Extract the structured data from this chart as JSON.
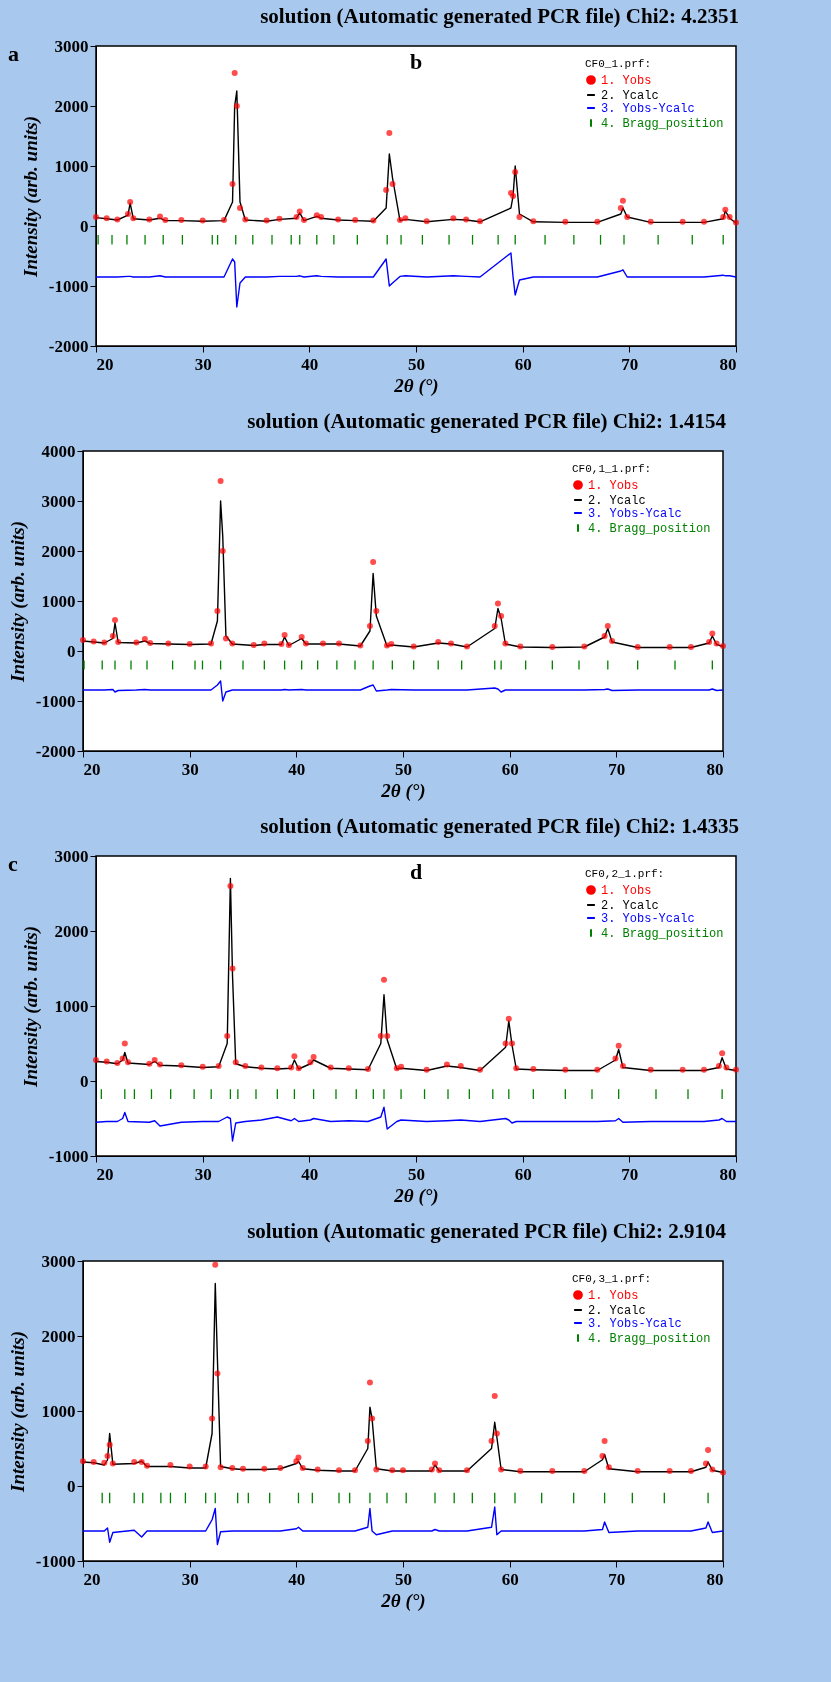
{
  "chart_data": [
    {
      "type": "line",
      "title": "solution (Automatic generated PCR file) Chi2: 4.2351",
      "xlabel": "2θ (°)",
      "ylabel": "Intensity (arb. units)",
      "legend_title": "CF0_1.prf:",
      "legend": "top right",
      "annotations": [
        "a",
        "b"
      ],
      "xlim": [
        20,
        80
      ],
      "xticks": [
        20,
        30,
        40,
        50,
        60,
        70,
        80
      ],
      "ylim": [
        -2000,
        3000
      ],
      "yticks": [
        -2000,
        -1000,
        0,
        1000,
        2000,
        3000
      ],
      "x": [
        20,
        21,
        22,
        23.0,
        23.2,
        23.5,
        25,
        26,
        26.5,
        28,
        30,
        32,
        32.8,
        33.0,
        33.2,
        33.5,
        34,
        36,
        37.2,
        38.8,
        39.1,
        39.5,
        40.7,
        41.1,
        42.7,
        44.3,
        46,
        47.2,
        47.5,
        47.8,
        48.5,
        49.0,
        51,
        53.5,
        54.7,
        56,
        58.9,
        59.1,
        59.3,
        59.7,
        61,
        64,
        67,
        69.2,
        69.4,
        69.8,
        72,
        75,
        77,
        78.8,
        79.0,
        79.4,
        80
      ],
      "series": [
        {
          "name": "1. Yobs",
          "color": "#ff0000",
          "type": "scatter",
          "marker": "circle",
          "values": [
            150,
            130,
            110,
            200,
            400,
            130,
            110,
            160,
            100,
            100,
            90,
            100,
            700,
            2550,
            2000,
            300,
            110,
            90,
            120,
            150,
            240,
            100,
            180,
            150,
            110,
            100,
            90,
            600,
            1550,
            700,
            100,
            130,
            80,
            130,
            110,
            80,
            550,
            500,
            900,
            150,
            80,
            70,
            70,
            300,
            420,
            150,
            70,
            70,
            70,
            150,
            270,
            150,
            60
          ]
        },
        {
          "name": "2. Ycalc",
          "color": "#000000",
          "values": [
            140,
            120,
            100,
            180,
            380,
            120,
            100,
            130,
            90,
            90,
            80,
            90,
            400,
            2000,
            2250,
            400,
            100,
            80,
            110,
            130,
            220,
            90,
            160,
            130,
            100,
            90,
            80,
            300,
            1200,
            800,
            90,
            110,
            70,
            110,
            100,
            70,
            300,
            500,
            1000,
            200,
            70,
            60,
            60,
            200,
            300,
            150,
            60,
            60,
            60,
            120,
            250,
            130,
            50
          ]
        },
        {
          "name": "3. Yobs-Ycalc",
          "color": "#0000ff",
          "values": [
            -850,
            -850,
            -850,
            -840,
            -840,
            -850,
            -850,
            -830,
            -850,
            -850,
            -850,
            -850,
            -550,
            -600,
            -1350,
            -950,
            -850,
            -850,
            -840,
            -840,
            -830,
            -850,
            -830,
            -840,
            -850,
            -850,
            -850,
            -550,
            -1000,
            -950,
            -840,
            -830,
            -850,
            -830,
            -840,
            -850,
            -450,
            -850,
            -1150,
            -900,
            -850,
            -850,
            -850,
            -750,
            -730,
            -850,
            -850,
            -850,
            -850,
            -820,
            -830,
            -830,
            -850
          ]
        },
        {
          "name": "4. Bragg_position",
          "color": "#008000",
          "type": "bar",
          "x": [
            20.2,
            21.5,
            22.9,
            24.6,
            26.3,
            28.1,
            30.9,
            31.4,
            33.1,
            34.7,
            36.5,
            38.3,
            39.1,
            40.7,
            42.3,
            44.5,
            47.3,
            48.6,
            50.6,
            53.1,
            55.3,
            57.7,
            59.3,
            62.1,
            64.8,
            67.3,
            69.5,
            72.7,
            75.9,
            78.8
          ],
          "base": [
            -310,
            -310,
            -310,
            -310,
            -310,
            -310,
            -310,
            -310,
            -310,
            -310,
            -310,
            -310,
            -310,
            -310,
            -310,
            -310,
            -310,
            -310,
            -310,
            -310,
            -310,
            -310,
            -310,
            -310,
            -310,
            -310,
            -310,
            -310,
            -310,
            -310
          ],
          "values": [
            160,
            160,
            160,
            160,
            160,
            160,
            160,
            160,
            160,
            160,
            160,
            160,
            160,
            160,
            160,
            160,
            160,
            160,
            160,
            160,
            160,
            160,
            160,
            160,
            160,
            160,
            160,
            160,
            160,
            160
          ]
        }
      ]
    },
    {
      "type": "line",
      "title": "solution (Automatic generated PCR file) Chi2: 1.4154",
      "xlabel": "2θ (°)",
      "ylabel": "Intensity (arb. units)",
      "legend_title": "CF0,1_1.prf:",
      "legend": "top right",
      "xlim": [
        20,
        80
      ],
      "xticks": [
        20,
        30,
        40,
        50,
        60,
        70,
        80
      ],
      "ylim": [
        -2000,
        4000
      ],
      "yticks": [
        -2000,
        -1000,
        0,
        1000,
        2000,
        3000,
        4000
      ],
      "x": [
        20,
        21,
        22,
        22.8,
        23.0,
        23.3,
        25,
        25.8,
        26.3,
        28,
        30,
        32,
        32.6,
        32.9,
        33.1,
        33.4,
        34,
        36,
        37,
        38.6,
        38.9,
        39.3,
        40.5,
        40.9,
        42.5,
        44,
        46,
        46.9,
        47.2,
        47.5,
        48.5,
        48.9,
        51,
        53.3,
        54.5,
        56,
        58.6,
        58.9,
        59.2,
        59.6,
        61,
        64,
        67,
        68.9,
        69.2,
        69.6,
        72,
        75,
        77,
        78.7,
        79.0,
        79.4,
        80
      ],
      "series": [
        {
          "name": "1. Yobs",
          "color": "#ff0000",
          "type": "scatter",
          "marker": "circle",
          "values": [
            220,
            190,
            170,
            300,
            620,
            180,
            170,
            240,
            160,
            150,
            140,
            150,
            800,
            3400,
            2000,
            250,
            150,
            120,
            150,
            140,
            320,
            120,
            280,
            150,
            150,
            150,
            110,
            500,
            1780,
            800,
            110,
            140,
            90,
            180,
            150,
            90,
            500,
            950,
            700,
            150,
            90,
            80,
            90,
            300,
            500,
            200,
            80,
            80,
            80,
            180,
            350,
            150,
            100
          ]
        },
        {
          "name": "2. Ycalc",
          "color": "#000000",
          "values": [
            200,
            180,
            160,
            250,
            560,
            170,
            160,
            200,
            150,
            140,
            130,
            140,
            600,
            3000,
            2300,
            300,
            140,
            110,
            130,
            130,
            280,
            110,
            250,
            140,
            140,
            140,
            100,
            400,
            1550,
            700,
            100,
            120,
            80,
            160,
            140,
            80,
            450,
            850,
            650,
            140,
            80,
            70,
            80,
            280,
            450,
            180,
            70,
            70,
            70,
            160,
            300,
            130,
            90
          ]
        },
        {
          "name": "3. Yobs-Ycalc",
          "color": "#0000ff",
          "values": [
            -780,
            -780,
            -780,
            -770,
            -820,
            -790,
            -780,
            -770,
            -780,
            -780,
            -780,
            -780,
            -680,
            -600,
            -1000,
            -820,
            -780,
            -780,
            -780,
            -780,
            -770,
            -780,
            -770,
            -780,
            -780,
            -780,
            -780,
            -700,
            -680,
            -800,
            -780,
            -770,
            -780,
            -780,
            -780,
            -780,
            -740,
            -760,
            -820,
            -780,
            -780,
            -780,
            -780,
            -770,
            -760,
            -790,
            -780,
            -780,
            -780,
            -780,
            -760,
            -790,
            -780
          ]
        },
        {
          "name": "4. Bragg_position",
          "color": "#008000",
          "type": "bar",
          "x": [
            20.1,
            21.8,
            23.0,
            24.5,
            26.0,
            28.4,
            30.5,
            31.2,
            32.9,
            35.0,
            37.0,
            38.9,
            40.5,
            42.0,
            43.8,
            45.5,
            47.2,
            49.0,
            51.0,
            53.3,
            55.5,
            58.6,
            59.2,
            61.5,
            64.0,
            66.5,
            69.2,
            72.0,
            75.5,
            79.0
          ],
          "base": [
            -370,
            -370,
            -370,
            -370,
            -370,
            -370,
            -370,
            -370,
            -370,
            -370,
            -370,
            -370,
            -370,
            -370,
            -370,
            -370,
            -370,
            -370,
            -370,
            -370,
            -370,
            -370,
            -370,
            -370,
            -370,
            -370,
            -370,
            -370,
            -370,
            -370
          ],
          "values": [
            180,
            180,
            180,
            180,
            180,
            180,
            180,
            180,
            180,
            180,
            180,
            180,
            180,
            180,
            180,
            180,
            180,
            180,
            180,
            180,
            180,
            180,
            180,
            180,
            180,
            180,
            180,
            180,
            180,
            180
          ]
        }
      ]
    },
    {
      "type": "line",
      "title": "solution (Automatic generated PCR file) Chi2: 1.4335",
      "xlabel": "2θ (°)",
      "ylabel": "Intensity (arb. units)",
      "legend_title": "CF0,2_1.prf:",
      "legend": "top right",
      "annotations": [
        "c",
        "d"
      ],
      "xlim": [
        20,
        80
      ],
      "xticks": [
        20,
        30,
        40,
        50,
        60,
        70,
        80
      ],
      "ylim": [
        -1000,
        3000
      ],
      "yticks": [
        -1000,
        0,
        1000,
        2000,
        3000
      ],
      "x": [
        20,
        21,
        22,
        22.5,
        22.7,
        23.0,
        25,
        25.5,
        26,
        28,
        30,
        31.5,
        32.3,
        32.6,
        32.8,
        33.1,
        34,
        35.5,
        37,
        38.3,
        38.6,
        39,
        40.1,
        40.4,
        42,
        43.7,
        45.5,
        46.7,
        47.0,
        47.3,
        48.2,
        48.6,
        51,
        52.9,
        54.2,
        56,
        58.4,
        58.7,
        59.0,
        59.4,
        61,
        64,
        67,
        68.7,
        69.0,
        69.4,
        72,
        75,
        77,
        78.4,
        78.7,
        79.1,
        80
      ],
      "series": [
        {
          "name": "1. Yobs",
          "color": "#ff0000",
          "type": "scatter",
          "marker": "circle",
          "values": [
            280,
            260,
            240,
            300,
            500,
            250,
            230,
            280,
            220,
            210,
            190,
            200,
            600,
            2600,
            1500,
            250,
            200,
            180,
            170,
            180,
            330,
            170,
            250,
            320,
            180,
            170,
            160,
            600,
            1350,
            600,
            170,
            190,
            150,
            220,
            200,
            150,
            500,
            830,
            500,
            170,
            160,
            150,
            150,
            300,
            470,
            200,
            150,
            150,
            150,
            200,
            370,
            180,
            150
          ]
        },
        {
          "name": "2. Ycalc",
          "color": "#000000",
          "values": [
            260,
            250,
            230,
            280,
            380,
            240,
            220,
            260,
            210,
            200,
            180,
            190,
            500,
            2700,
            1400,
            230,
            190,
            170,
            160,
            170,
            280,
            160,
            230,
            280,
            170,
            160,
            150,
            500,
            1150,
            550,
            160,
            170,
            140,
            200,
            180,
            140,
            450,
            800,
            480,
            160,
            150,
            140,
            140,
            280,
            420,
            180,
            140,
            140,
            140,
            180,
            310,
            160,
            140
          ]
        },
        {
          "name": "3. Yobs-Ycalc",
          "color": "#0000ff",
          "values": [
            -550,
            -540,
            -540,
            -500,
            -420,
            -540,
            -550,
            -530,
            -600,
            -550,
            -540,
            -540,
            -480,
            -500,
            -800,
            -560,
            -540,
            -520,
            -480,
            -530,
            -500,
            -540,
            -520,
            -500,
            -540,
            -530,
            -540,
            -480,
            -350,
            -640,
            -540,
            -520,
            -540,
            -530,
            -520,
            -540,
            -500,
            -520,
            -560,
            -540,
            -540,
            -540,
            -540,
            -530,
            -500,
            -550,
            -540,
            -540,
            -540,
            -520,
            -500,
            -540,
            -540
          ]
        },
        {
          "name": "4. Bragg_position",
          "color": "#008000",
          "type": "bar",
          "x": [
            20.5,
            22.7,
            23.6,
            25.2,
            27.0,
            29.2,
            30.8,
            32.6,
            33.3,
            35.0,
            37.0,
            38.6,
            40.4,
            42.5,
            44.4,
            46.0,
            47.0,
            48.6,
            50.8,
            53.0,
            55.0,
            57.2,
            58.7,
            61.0,
            64.0,
            66.5,
            69.0,
            72.5,
            75.5,
            78.7
          ],
          "base": [
            -240,
            -240,
            -240,
            -240,
            -240,
            -240,
            -240,
            -240,
            -240,
            -240,
            -240,
            -240,
            -240,
            -240,
            -240,
            -240,
            -240,
            -240,
            -240,
            -240,
            -240,
            -240,
            -240,
            -240,
            -240,
            -240,
            -240,
            -240,
            -240,
            -240
          ],
          "values": [
            130,
            130,
            130,
            130,
            130,
            130,
            130,
            130,
            130,
            130,
            130,
            130,
            130,
            130,
            130,
            130,
            130,
            130,
            130,
            130,
            130,
            130,
            130,
            130,
            130,
            130,
            130,
            130,
            130,
            130
          ]
        }
      ]
    },
    {
      "type": "line",
      "title": "solution (Automatic generated PCR file) Chi2: 2.9104",
      "xlabel": "2θ (°)",
      "ylabel": "Intensity (arb. units)",
      "legend_title": "CF0,3_1.prf:",
      "legend": "top right",
      "xlim": [
        20,
        80
      ],
      "xticks": [
        20,
        30,
        40,
        50,
        60,
        70,
        80
      ],
      "ylim": [
        -1000,
        3000
      ],
      "yticks": [
        -1000,
        0,
        1000,
        2000,
        3000
      ],
      "x": [
        20,
        21,
        22,
        22.3,
        22.5,
        22.8,
        24.8,
        25.5,
        26,
        28.2,
        30,
        31.5,
        32.1,
        32.4,
        32.6,
        32.9,
        34,
        35,
        37,
        38.5,
        40.0,
        40.2,
        40.6,
        42,
        44,
        45.5,
        46.7,
        46.9,
        47.1,
        47.5,
        49,
        50,
        52.7,
        53.0,
        53.4,
        56,
        58.3,
        58.6,
        58.8,
        59.2,
        61,
        64,
        67,
        68.7,
        68.9,
        69.3,
        72,
        75,
        77,
        78.4,
        78.6,
        79.0,
        80
      ],
      "series": [
        {
          "name": "1. Yobs",
          "color": "#ff0000",
          "type": "scatter",
          "marker": "circle",
          "values": [
            330,
            320,
            310,
            400,
            550,
            300,
            320,
            320,
            270,
            280,
            260,
            260,
            900,
            2950,
            1500,
            250,
            240,
            230,
            230,
            240,
            330,
            380,
            240,
            220,
            210,
            210,
            600,
            1380,
            900,
            220,
            210,
            210,
            220,
            300,
            210,
            210,
            600,
            1200,
            700,
            220,
            200,
            200,
            200,
            400,
            600,
            250,
            200,
            200,
            200,
            300,
            480,
            220,
            180
          ]
        },
        {
          "name": "2. Ycalc",
          "color": "#000000",
          "values": [
            320,
            310,
            280,
            350,
            700,
            290,
            300,
            330,
            260,
            260,
            240,
            240,
            700,
            2700,
            1700,
            260,
            230,
            220,
            220,
            230,
            300,
            330,
            230,
            210,
            200,
            200,
            500,
            1050,
            900,
            230,
            200,
            200,
            200,
            280,
            200,
            200,
            500,
            850,
            650,
            220,
            190,
            190,
            190,
            350,
            420,
            230,
            190,
            190,
            190,
            250,
            320,
            210,
            180
          ]
        },
        {
          "name": "3. Yobs-Ycalc",
          "color": "#0000ff",
          "values": [
            -600,
            -600,
            -600,
            -560,
            -750,
            -620,
            -590,
            -680,
            -600,
            -600,
            -600,
            -600,
            -450,
            -300,
            -780,
            -610,
            -600,
            -600,
            -600,
            -600,
            -570,
            -550,
            -600,
            -600,
            -600,
            -600,
            -550,
            -300,
            -600,
            -650,
            -600,
            -600,
            -600,
            -580,
            -600,
            -600,
            -550,
            -280,
            -650,
            -600,
            -600,
            -600,
            -600,
            -580,
            -480,
            -620,
            -600,
            -600,
            -600,
            -560,
            -480,
            -620,
            -600
          ]
        },
        {
          "name": "4. Bragg_position",
          "color": "#008000",
          "type": "bar",
          "x": [
            21.8,
            22.5,
            24.8,
            25.6,
            27.3,
            28.2,
            29.6,
            31.5,
            32.4,
            34.5,
            35.5,
            37.5,
            40.2,
            41.5,
            44.0,
            45.0,
            46.9,
            48.5,
            50.3,
            53.0,
            54.8,
            56.5,
            58.6,
            60.5,
            63.0,
            66.0,
            68.9,
            71.5,
            74.5,
            78.6
          ],
          "base": [
            -230,
            -230,
            -230,
            -230,
            -230,
            -230,
            -230,
            -230,
            -230,
            -230,
            -230,
            -230,
            -230,
            -230,
            -230,
            -230,
            -230,
            -230,
            -230,
            -230,
            -230,
            -230,
            -230,
            -230,
            -230,
            -230,
            -230,
            -230,
            -230,
            -230
          ],
          "values": [
            140,
            140,
            140,
            140,
            140,
            140,
            140,
            140,
            140,
            140,
            140,
            140,
            140,
            140,
            140,
            140,
            140,
            140,
            140,
            140,
            140,
            140,
            140,
            140,
            140,
            140,
            140,
            140,
            140,
            140
          ]
        }
      ]
    }
  ]
}
